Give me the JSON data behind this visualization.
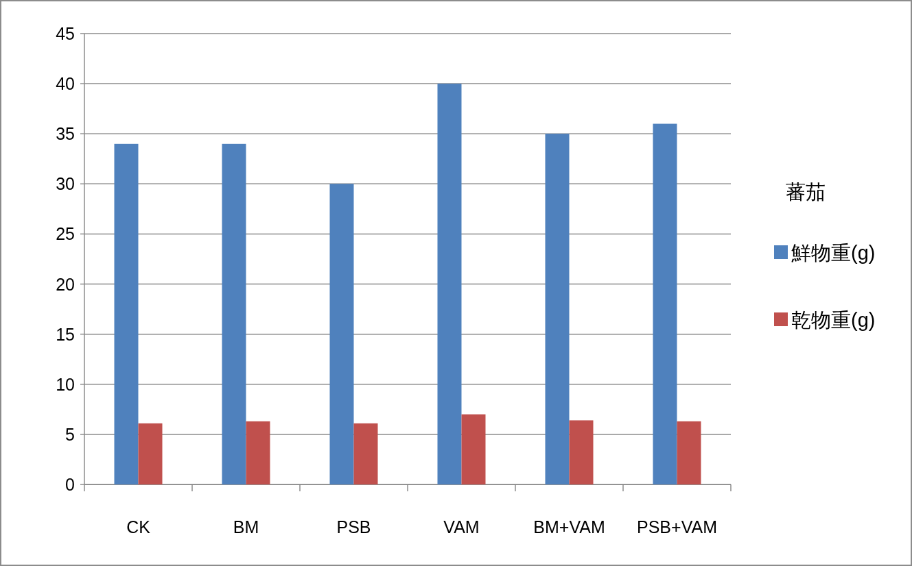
{
  "chart_data": {
    "type": "bar",
    "legend_title": "蕃茄",
    "categories": [
      "CK",
      "BM",
      "PSB",
      "VAM",
      "BM+VAM",
      "PSB+VAM"
    ],
    "series": [
      {
        "name": "鮮物重(g)",
        "color": "#4f81bd",
        "values": [
          34,
          34,
          30,
          40,
          35,
          36
        ]
      },
      {
        "name": "乾物重(g)",
        "color": "#c0504d",
        "values": [
          6.1,
          6.3,
          6.1,
          7.0,
          6.4,
          6.3
        ]
      }
    ],
    "ylim": [
      0,
      45
    ],
    "yticks": [
      0,
      5,
      10,
      15,
      20,
      25,
      30,
      35,
      40,
      45
    ],
    "grid": "y",
    "legend": "right"
  }
}
